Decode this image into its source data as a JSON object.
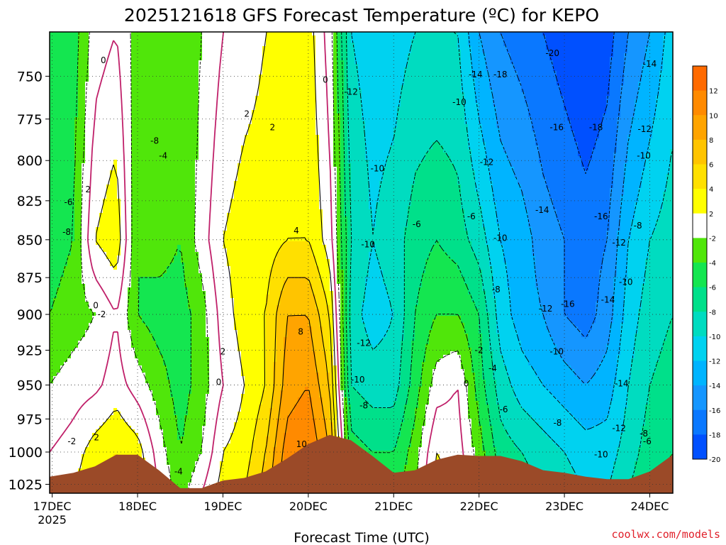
{
  "chart_data": {
    "type": "heatmap",
    "subtype": "filled-contour time-height cross-section",
    "title": "2025121618 GFS Forecast Temperature (ºC) for KEPO",
    "xlabel": "Forecast Time (UTC)",
    "ylabel": "",
    "credit": "coolwx.com/models",
    "x_unit": "day of December 2025",
    "x_range": [
      16.97,
      24.27
    ],
    "y_unit": "hPa",
    "y_range": [
      725,
      1032
    ],
    "y_inverted": true,
    "grid": "dotted",
    "x_ticks": [
      {
        "value": 17,
        "label": "17DEC",
        "sublabel": "2025"
      },
      {
        "value": 18,
        "label": "18DEC"
      },
      {
        "value": 19,
        "label": "19DEC"
      },
      {
        "value": 20,
        "label": "20DEC"
      },
      {
        "value": 21,
        "label": "21DEC"
      },
      {
        "value": 22,
        "label": "22DEC"
      },
      {
        "value": 23,
        "label": "23DEC"
      },
      {
        "value": 24,
        "label": "24DEC"
      }
    ],
    "y_ticks": [
      750,
      775,
      800,
      825,
      850,
      875,
      900,
      925,
      950,
      975,
      1000,
      1025
    ],
    "x_times": [
      16.97,
      17.25,
      17.5,
      17.75,
      18.0,
      18.25,
      18.5,
      18.75,
      19.0,
      19.25,
      19.5,
      19.75,
      20.0,
      20.25,
      20.5,
      20.75,
      21.0,
      21.25,
      21.5,
      21.75,
      22.0,
      22.25,
      22.5,
      22.75,
      23.0,
      23.25,
      23.5,
      23.75,
      24.0,
      24.27
    ],
    "profiles": [
      {
        "time": 16.97,
        "p": [
          725,
          850,
          900,
          950,
          1000,
          1032
        ],
        "t": [
          -6,
          -5,
          -4,
          -2,
          0,
          1
        ]
      },
      {
        "time": 17.25,
        "p": [
          725,
          850,
          900,
          950,
          1000,
          1032
        ],
        "t": [
          -5,
          -4,
          -3,
          -1,
          1,
          2
        ]
      },
      {
        "time": 17.5,
        "p": [
          725,
          850,
          900,
          950,
          1000,
          1032
        ],
        "t": [
          -1,
          2,
          -2,
          -0.5,
          3,
          4
        ]
      },
      {
        "time": 17.75,
        "p": [
          725,
          850,
          900,
          950,
          1000,
          1032
        ],
        "t": [
          0,
          3.5,
          0,
          1,
          4,
          5
        ]
      },
      {
        "time": 18.0,
        "p": [
          725,
          850,
          900,
          950,
          1000,
          1032
        ],
        "t": [
          -3,
          -4,
          -4,
          -1,
          3,
          4
        ]
      },
      {
        "time": 18.25,
        "p": [
          725,
          850,
          900,
          950,
          1000,
          1032
        ],
        "t": [
          -4,
          -3,
          -5,
          -3,
          -1,
          0
        ]
      },
      {
        "time": 18.5,
        "p": [
          725,
          850,
          900,
          950,
          1000,
          1032
        ],
        "t": [
          -4,
          -4,
          -5,
          -5,
          -4,
          -3
        ]
      },
      {
        "time": 18.75,
        "p": [
          725,
          850,
          900,
          950,
          1000,
          1032
        ],
        "t": [
          -2,
          -1,
          -3,
          -3,
          -2,
          0
        ]
      },
      {
        "time": 19.0,
        "p": [
          725,
          850,
          900,
          950,
          1000,
          1032
        ],
        "t": [
          0,
          2,
          1,
          0,
          2,
          3
        ]
      },
      {
        "time": 19.25,
        "p": [
          725,
          850,
          900,
          950,
          1000,
          1032
        ],
        "t": [
          1,
          3,
          3,
          2,
          3,
          4
        ]
      },
      {
        "time": 19.5,
        "p": [
          725,
          850,
          900,
          950,
          1000,
          1032
        ],
        "t": [
          2,
          3,
          4,
          4,
          6,
          7
        ]
      },
      {
        "time": 19.75,
        "p": [
          725,
          850,
          900,
          950,
          1000,
          1032
        ],
        "t": [
          2,
          4,
          8,
          9,
          11,
          12
        ]
      },
      {
        "time": 20.0,
        "p": [
          725,
          850,
          900,
          950,
          1000,
          1032
        ],
        "t": [
          3,
          4,
          8,
          10,
          12,
          13
        ]
      },
      {
        "time": 20.25,
        "p": [
          725,
          850,
          900,
          950,
          1000,
          1032
        ],
        "t": [
          -1,
          1,
          4,
          6,
          8,
          9
        ]
      },
      {
        "time": 20.5,
        "p": [
          725,
          850,
          900,
          950,
          1000,
          1032
        ],
        "t": [
          -10,
          -8,
          -9,
          -8,
          -5,
          -4
        ]
      },
      {
        "time": 20.75,
        "p": [
          725,
          850,
          900,
          950,
          1000,
          1032
        ],
        "t": [
          -11,
          -10,
          -11,
          -9,
          -6,
          -5
        ]
      },
      {
        "time": 21.0,
        "p": [
          725,
          850,
          900,
          950,
          1000,
          1032
        ],
        "t": [
          -11,
          -9,
          -10,
          -9,
          -6,
          -5
        ]
      },
      {
        "time": 21.25,
        "p": [
          725,
          850,
          900,
          950,
          1000,
          1032
        ],
        "t": [
          -10,
          -7,
          -6,
          -5,
          -3,
          -2
        ]
      },
      {
        "time": 21.5,
        "p": [
          725,
          850,
          900,
          950,
          1000,
          1032
        ],
        "t": [
          -10,
          -6,
          -4,
          -1,
          2,
          3
        ]
      },
      {
        "time": 21.75,
        "p": [
          725,
          850,
          900,
          950,
          1000,
          1032
        ],
        "t": [
          -10,
          -7,
          -4,
          0,
          1,
          2
        ]
      },
      {
        "time": 22.0,
        "p": [
          725,
          850,
          900,
          950,
          1000,
          1032
        ],
        "t": [
          -14,
          -9,
          -6,
          -5,
          -3,
          -2
        ]
      },
      {
        "time": 22.25,
        "p": [
          725,
          850,
          900,
          950,
          1000,
          1032
        ],
        "t": [
          -16,
          -12,
          -11,
          -9,
          -7,
          -6
        ]
      },
      {
        "time": 22.5,
        "p": [
          725,
          850,
          900,
          950,
          1000,
          1032
        ],
        "t": [
          -17,
          -13,
          -13,
          -11,
          -8,
          -7
        ]
      },
      {
        "time": 22.75,
        "p": [
          725,
          850,
          900,
          950,
          1000,
          1032
        ],
        "t": [
          -18,
          -15,
          -14,
          -12,
          -9,
          -8
        ]
      },
      {
        "time": 23.0,
        "p": [
          725,
          850,
          900,
          950,
          1000,
          1032
        ],
        "t": [
          -19,
          -16,
          -16,
          -13,
          -10,
          -9
        ]
      },
      {
        "time": 23.25,
        "p": [
          725,
          850,
          900,
          950,
          1000,
          1032
        ],
        "t": [
          -20,
          -17,
          -17,
          -14,
          -11,
          -10
        ]
      },
      {
        "time": 23.5,
        "p": [
          725,
          850,
          900,
          950,
          1000,
          1032
        ],
        "t": [
          -19,
          -16,
          -15,
          -13,
          -11,
          -10
        ]
      },
      {
        "time": 23.75,
        "p": [
          725,
          850,
          900,
          950,
          1000,
          1032
        ],
        "t": [
          -16,
          -12,
          -11,
          -10,
          -9,
          -8
        ]
      },
      {
        "time": 24.0,
        "p": [
          725,
          850,
          900,
          950,
          1000,
          1032
        ],
        "t": [
          -14,
          -10,
          -9,
          -8,
          -7,
          -6
        ]
      },
      {
        "time": 24.27,
        "p": [
          725,
          850,
          900,
          950,
          1000,
          1032
        ],
        "t": [
          -11,
          -9,
          -8,
          -7,
          -6,
          -5
        ]
      }
    ],
    "surface_pressure": [
      {
        "time": 16.97,
        "p": 1019
      },
      {
        "time": 17.25,
        "p": 1016
      },
      {
        "time": 17.5,
        "p": 1011
      },
      {
        "time": 17.75,
        "p": 1002
      },
      {
        "time": 18.0,
        "p": 1002
      },
      {
        "time": 18.25,
        "p": 1014
      },
      {
        "time": 18.5,
        "p": 1028
      },
      {
        "time": 18.75,
        "p": 1028
      },
      {
        "time": 19.0,
        "p": 1022
      },
      {
        "time": 19.25,
        "p": 1020
      },
      {
        "time": 19.5,
        "p": 1015
      },
      {
        "time": 19.75,
        "p": 1005
      },
      {
        "time": 20.0,
        "p": 994
      },
      {
        "time": 20.25,
        "p": 987
      },
      {
        "time": 20.5,
        "p": 991
      },
      {
        "time": 20.75,
        "p": 1003
      },
      {
        "time": 21.0,
        "p": 1016
      },
      {
        "time": 21.25,
        "p": 1014
      },
      {
        "time": 21.5,
        "p": 1006
      },
      {
        "time": 21.75,
        "p": 1002
      },
      {
        "time": 22.0,
        "p": 1003
      },
      {
        "time": 22.25,
        "p": 1003
      },
      {
        "time": 22.5,
        "p": 1007
      },
      {
        "time": 22.75,
        "p": 1014
      },
      {
        "time": 23.0,
        "p": 1016
      },
      {
        "time": 23.25,
        "p": 1019
      },
      {
        "time": 23.5,
        "p": 1021
      },
      {
        "time": 23.75,
        "p": 1021
      },
      {
        "time": 24.0,
        "p": 1015
      },
      {
        "time": 24.27,
        "p": 1002
      }
    ],
    "colorbar": {
      "levels": [
        -20,
        -18,
        -16,
        -14,
        -12,
        -10,
        -8,
        -6,
        -4,
        -2,
        2,
        4,
        6,
        8,
        10,
        12
      ],
      "colors": [
        "#0050ff",
        "#0a78ff",
        "#1596ff",
        "#00b4ff",
        "#00d2f0",
        "#00dcc0",
        "#00e08a",
        "#14e650",
        "#50e60a",
        "#ffffff",
        "#ffff00",
        "#ffe000",
        "#ffc400",
        "#ffa400",
        "#ff8a00",
        "#ff6a00"
      ],
      "tick_labels": [
        "12",
        "10",
        "8",
        "6",
        "4",
        "2",
        "-2",
        "-4",
        "-6",
        "-8",
        "-10",
        "-12",
        "-14",
        "-16",
        "-18",
        "-20"
      ]
    },
    "surface_color": "#9b4a28",
    "freezing_line_color": "#c0206a",
    "contour_labels": [
      {
        "text": "0",
        "time": 17.6,
        "p": 741
      },
      {
        "text": "2",
        "time": 17.42,
        "p": 818
      },
      {
        "text": "-6",
        "time": 17.19,
        "p": 826
      },
      {
        "text": "-8",
        "time": 17.17,
        "p": 845
      },
      {
        "text": "0",
        "time": 17.51,
        "p": 894
      },
      {
        "text": "-2",
        "time": 17.58,
        "p": 900
      },
      {
        "text": "-2",
        "time": 17.23,
        "p": 992
      },
      {
        "text": "2",
        "time": 17.52,
        "p": 989
      },
      {
        "text": "-8",
        "time": 18.2,
        "p": 788
      },
      {
        "text": "-4",
        "time": 18.3,
        "p": 797
      },
      {
        "text": "-4",
        "time": 18.48,
        "p": 1015
      },
      {
        "text": "2",
        "time": 19.28,
        "p": 772
      },
      {
        "text": "2",
        "time": 19.58,
        "p": 780
      },
      {
        "text": "4",
        "time": 19.86,
        "p": 844
      },
      {
        "text": "0",
        "time": 20.2,
        "p": 752
      },
      {
        "text": "8",
        "time": 19.91,
        "p": 912
      },
      {
        "text": "2",
        "time": 19.0,
        "p": 926
      },
      {
        "text": "0",
        "time": 18.95,
        "p": 948
      },
      {
        "text": "10",
        "time": 19.92,
        "p": 994
      },
      {
        "text": "-12",
        "time": 20.5,
        "p": 759
      },
      {
        "text": "-10",
        "time": 20.81,
        "p": 805
      },
      {
        "text": "-10",
        "time": 20.7,
        "p": 853
      },
      {
        "text": "-6",
        "time": 21.27,
        "p": 840
      },
      {
        "text": "-12",
        "time": 20.65,
        "p": 920
      },
      {
        "text": "-10",
        "time": 20.58,
        "p": 946
      },
      {
        "text": "-8",
        "time": 20.65,
        "p": 965
      },
      {
        "text": "-10",
        "time": 21.77,
        "p": 765
      },
      {
        "text": "-14",
        "time": 21.96,
        "p": 749
      },
      {
        "text": "-18",
        "time": 22.25,
        "p": 749
      },
      {
        "text": "-12",
        "time": 22.09,
        "p": 801
      },
      {
        "text": "-6",
        "time": 21.91,
        "p": 835
      },
      {
        "text": "-10",
        "time": 22.25,
        "p": 849
      },
      {
        "text": "-8",
        "time": 22.2,
        "p": 883
      },
      {
        "text": "-2",
        "time": 22.0,
        "p": 925
      },
      {
        "text": "-4",
        "time": 22.16,
        "p": 938
      },
      {
        "text": "0",
        "time": 21.85,
        "p": 949
      },
      {
        "text": "-6",
        "time": 22.29,
        "p": 968
      },
      {
        "text": "-8",
        "time": 22.92,
        "p": 978
      },
      {
        "text": "-20",
        "time": 22.86,
        "p": 737
      },
      {
        "text": "-16",
        "time": 22.91,
        "p": 780
      },
      {
        "text": "-18",
        "time": 23.37,
        "p": 780
      },
      {
        "text": "-14",
        "time": 22.74,
        "p": 831
      },
      {
        "text": "-12",
        "time": 22.78,
        "p": 896
      },
      {
        "text": "-16",
        "time": 23.04,
        "p": 893
      },
      {
        "text": "-10",
        "time": 22.91,
        "p": 926
      },
      {
        "text": "-14",
        "time": 24.0,
        "p": 743
      },
      {
        "text": "-12",
        "time": 23.94,
        "p": 781
      },
      {
        "text": "-10",
        "time": 23.93,
        "p": 797
      },
      {
        "text": "-8",
        "time": 23.86,
        "p": 841
      },
      {
        "text": "-16",
        "time": 23.43,
        "p": 835
      },
      {
        "text": "-12",
        "time": 23.64,
        "p": 852
      },
      {
        "text": "-10",
        "time": 23.72,
        "p": 878
      },
      {
        "text": "-14",
        "time": 23.51,
        "p": 890
      },
      {
        "text": "-14",
        "time": 23.67,
        "p": 949
      },
      {
        "text": "-12",
        "time": 23.64,
        "p": 982
      },
      {
        "text": "-8",
        "time": 23.93,
        "p": 986
      },
      {
        "text": "-6",
        "time": 23.97,
        "p": 992
      },
      {
        "text": "-10",
        "time": 23.43,
        "p": 1002
      }
    ]
  }
}
